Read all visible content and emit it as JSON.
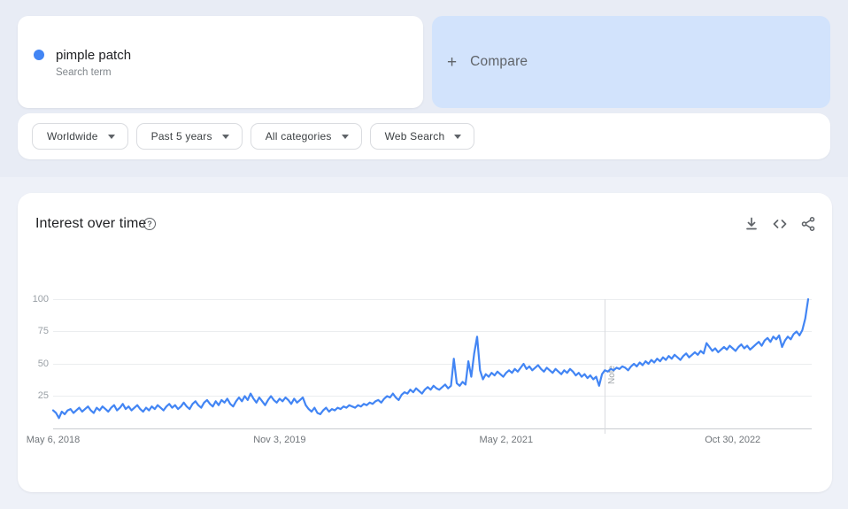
{
  "search_card": {
    "term": "pimple patch",
    "subtitle": "Search term",
    "dot_color": "#4285f4"
  },
  "compare_card": {
    "plus_glyph": "+",
    "label": "Compare",
    "background": "#d2e3fc"
  },
  "filters": [
    {
      "id": "geo",
      "label": "Worldwide"
    },
    {
      "id": "time",
      "label": "Past 5 years"
    },
    {
      "id": "category",
      "label": "All categories"
    },
    {
      "id": "property",
      "label": "Web Search"
    }
  ],
  "chart_header": {
    "title": "Interest over time",
    "help_glyph": "?",
    "icons": [
      "download-icon",
      "embed-icon",
      "share-icon"
    ]
  },
  "chart_data": {
    "type": "line",
    "series_name": "pimple patch",
    "line_color": "#4285f4",
    "ylim": [
      0,
      100
    ],
    "y_ticks": [
      25,
      50,
      75,
      100
    ],
    "grid": true,
    "weeks_total": 260,
    "x_ticks": [
      {
        "label": "May 6, 2018",
        "week": 0
      },
      {
        "label": "Nov 3, 2019",
        "week": 78
      },
      {
        "label": "May 2, 2021",
        "week": 156
      },
      {
        "label": "Oct 30, 2022",
        "week": 234
      }
    ],
    "note": {
      "label": "Note",
      "week": 190
    },
    "values": [
      14,
      12,
      8,
      13,
      11,
      14,
      15,
      12,
      14,
      16,
      13,
      15,
      17,
      14,
      12,
      16,
      14,
      17,
      15,
      13,
      16,
      18,
      14,
      16,
      19,
      15,
      17,
      14,
      16,
      18,
      15,
      13,
      16,
      14,
      17,
      15,
      18,
      16,
      14,
      17,
      19,
      16,
      18,
      15,
      17,
      20,
      17,
      15,
      19,
      21,
      18,
      16,
      20,
      22,
      19,
      17,
      21,
      18,
      22,
      20,
      23,
      19,
      17,
      21,
      24,
      21,
      25,
      22,
      27,
      23,
      20,
      24,
      21,
      18,
      22,
      25,
      22,
      20,
      23,
      21,
      24,
      22,
      19,
      23,
      20,
      22,
      24,
      18,
      15,
      13,
      16,
      12,
      11,
      14,
      16,
      13,
      15,
      14,
      16,
      15,
      17,
      16,
      18,
      17,
      16,
      18,
      17,
      19,
      18,
      20,
      19,
      21,
      22,
      20,
      23,
      25,
      24,
      27,
      24,
      22,
      26,
      28,
      27,
      30,
      28,
      31,
      29,
      27,
      30,
      32,
      30,
      33,
      31,
      30,
      32,
      34,
      31,
      33,
      54,
      35,
      33,
      36,
      34,
      52,
      40,
      58,
      71,
      45,
      38,
      42,
      40,
      43,
      41,
      44,
      42,
      40,
      43,
      45,
      43,
      46,
      44,
      47,
      50,
      46,
      48,
      45,
      47,
      49,
      46,
      44,
      47,
      45,
      43,
      46,
      44,
      42,
      45,
      43,
      46,
      44,
      41,
      43,
      40,
      42,
      39,
      41,
      38,
      40,
      33,
      42,
      45,
      44,
      46,
      45,
      47,
      46,
      48,
      47,
      45,
      48,
      50,
      48,
      51,
      49,
      52,
      50,
      53,
      51,
      54,
      52,
      55,
      53,
      56,
      54,
      57,
      55,
      53,
      56,
      58,
      55,
      57,
      59,
      57,
      60,
      58,
      66,
      63,
      60,
      62,
      59,
      61,
      63,
      61,
      64,
      62,
      60,
      63,
      65,
      62,
      64,
      61,
      63,
      65,
      67,
      64,
      68,
      70,
      67,
      71,
      69,
      72,
      63,
      68,
      71,
      69,
      73,
      75,
      72,
      76,
      85,
      100
    ]
  }
}
